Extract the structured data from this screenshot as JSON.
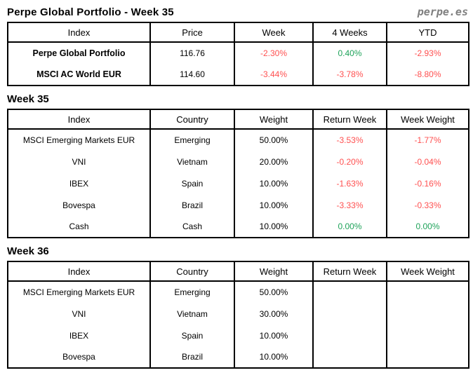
{
  "header": {
    "title": "Perpe Global Portfolio - Week 35",
    "logo": "perpe.es"
  },
  "colors": {
    "negative": "#ff5050",
    "positive": "#1fa35a",
    "logo_gray": "#7f7f7f"
  },
  "summary_table": {
    "columns": [
      "Index",
      "Price",
      "Week",
      "4 Weeks",
      "YTD"
    ],
    "rows": [
      {
        "index": "Perpe Global Portfolio",
        "price": "116.76",
        "week": "-2.30%",
        "four_weeks": "0.40%",
        "ytd": "-2.93%"
      },
      {
        "index": "MSCI AC World EUR",
        "price": "114.60",
        "week": "-3.44%",
        "four_weeks": "-3.78%",
        "ytd": "-8.80%"
      }
    ]
  },
  "week35": {
    "heading": "Week 35",
    "columns": [
      "Index",
      "Country",
      "Weight",
      "Return Week",
      "Week Weight"
    ],
    "rows": [
      {
        "index": "MSCI Emerging Markets EUR",
        "country": "Emerging",
        "weight": "50.00%",
        "return_week": "-3.53%",
        "week_weight": "-1.77%"
      },
      {
        "index": "VNI",
        "country": "Vietnam",
        "weight": "20.00%",
        "return_week": "-0.20%",
        "week_weight": "-0.04%"
      },
      {
        "index": "IBEX",
        "country": "Spain",
        "weight": "10.00%",
        "return_week": "-1.63%",
        "week_weight": "-0.16%"
      },
      {
        "index": "Bovespa",
        "country": "Brazil",
        "weight": "10.00%",
        "return_week": "-3.33%",
        "week_weight": "-0.33%"
      },
      {
        "index": "Cash",
        "country": "Cash",
        "weight": "10.00%",
        "return_week": "0.00%",
        "week_weight": "0.00%"
      }
    ]
  },
  "week36": {
    "heading": "Week 36",
    "columns": [
      "Index",
      "Country",
      "Weight",
      "Return Week",
      "Week Weight"
    ],
    "rows": [
      {
        "index": "MSCI Emerging Markets EUR",
        "country": "Emerging",
        "weight": "50.00%",
        "return_week": "",
        "week_weight": ""
      },
      {
        "index": "VNI",
        "country": "Vietnam",
        "weight": "30.00%",
        "return_week": "",
        "week_weight": ""
      },
      {
        "index": "IBEX",
        "country": "Spain",
        "weight": "10.00%",
        "return_week": "",
        "week_weight": ""
      },
      {
        "index": "Bovespa",
        "country": "Brazil",
        "weight": "10.00%",
        "return_week": "",
        "week_weight": ""
      }
    ]
  }
}
